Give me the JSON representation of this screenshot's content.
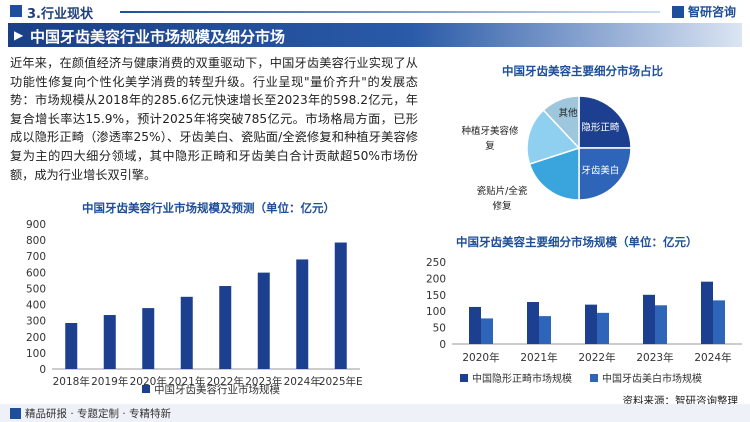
{
  "header": {
    "section": "3.行业现状",
    "logo": "智研咨询",
    "title": "中国牙齿美容行业市场规模及细分市场"
  },
  "paragraph": "近年来，在颜值经济与健康消费的双重驱动下，中国牙齿美容行业实现了从功能性修复向个性化美学消费的转型升级。行业呈现\"量价齐升\"的发展态势：市场规模从2018年的285.6亿元快速增长至2023年的598.2亿元，年复合增长率达15.9%，预计2025年将突破785亿元。市场格局方面，已形成以隐形正畸（渗透率25%）、牙齿美白、瓷贴面/全瓷修复和种植牙美容修复为主的四大细分领域，其中隐形正畸和牙齿美白合计贡献超50%市场份额，成为行业增长双引擎。",
  "footer": {
    "left": "精品研报 · 专题定制 · 专精特新",
    "source": "资料来源：智研咨询整理"
  },
  "colors": {
    "primary": "#1f4e9a",
    "bar_dark": "#1c3f8f",
    "bar_mid": "#2e65b8",
    "slice_teal": "#3aa4dc",
    "slice_light": "#8fd0f0",
    "slice_gray": "#9ec6dc"
  },
  "chart_data": [
    {
      "type": "bar",
      "title": "中国牙齿美容行业市场规模及预测（单位：亿元）",
      "categories": [
        "2018年",
        "2019年",
        "2020年",
        "2021年",
        "2022年",
        "2023年",
        "2024年",
        "2025年E"
      ],
      "series": [
        {
          "name": "中国牙齿美容行业市场规模",
          "values": [
            285.6,
            335,
            378,
            448,
            515,
            598.2,
            680,
            785
          ]
        }
      ],
      "ylim": [
        0,
        900
      ],
      "yticks": [
        0,
        100,
        200,
        300,
        400,
        500,
        600,
        700,
        800,
        900
      ],
      "legend": "bottom"
    },
    {
      "type": "pie",
      "title": "中国牙齿美容主要细分市场占比",
      "slices": [
        {
          "label": "隐形正畸",
          "value": 25
        },
        {
          "label": "牙齿美白",
          "value": 25
        },
        {
          "label": "瓷贴片/全瓷修复",
          "value": 20
        },
        {
          "label": "种植牙美容修复",
          "value": 18
        },
        {
          "label": "其他",
          "value": 12
        }
      ]
    },
    {
      "type": "bar",
      "title": "中国牙齿美容主要细分市场规模（单位：亿元）",
      "categories": [
        "2020年",
        "2021年",
        "2022年",
        "2023年",
        "2024年"
      ],
      "series": [
        {
          "name": "中国隐形正畸市场规模",
          "values": [
            113,
            128,
            120,
            150,
            190
          ]
        },
        {
          "name": "中国牙齿美白市场规模",
          "values": [
            78,
            85,
            95,
            118,
            133
          ]
        }
      ],
      "ylim": [
        0,
        250
      ],
      "yticks": [
        0,
        50,
        100,
        150,
        200,
        250
      ],
      "legend": "bottom"
    }
  ]
}
